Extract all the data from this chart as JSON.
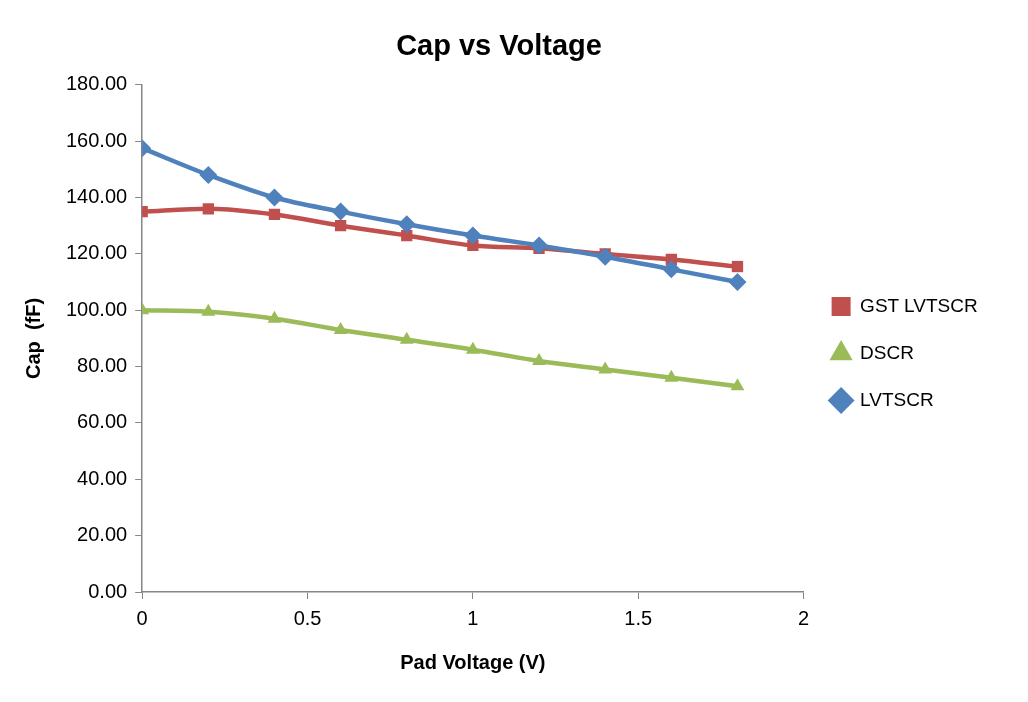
{
  "chart_data": {
    "type": "line",
    "title": "Cap vs Voltage",
    "xlabel": "Pad Voltage (V)",
    "ylabel": "Cap  (fF)",
    "x": [
      0,
      0.2,
      0.4,
      0.6,
      0.8,
      1.0,
      1.2,
      1.4,
      1.6,
      1.8
    ],
    "series": [
      {
        "name": "GST LVTSCR",
        "color": "#c0504d",
        "marker": "square",
        "values": [
          135,
          136,
          134,
          130,
          126.5,
          123,
          122,
          120,
          118,
          115.5
        ]
      },
      {
        "name": "DSCR",
        "color": "#9bbb59",
        "marker": "triangle",
        "values": [
          100,
          99.5,
          97,
          93,
          89.5,
          86,
          82,
          79,
          76,
          73
        ]
      },
      {
        "name": "LVTSCR",
        "color": "#4f81bd",
        "marker": "diamond",
        "values": [
          157.5,
          148,
          140,
          135,
          130.5,
          126.5,
          123,
          119,
          114.5,
          110
        ]
      }
    ],
    "xlim": [
      0,
      2
    ],
    "xticks": [
      0,
      0.5,
      1,
      1.5,
      2
    ],
    "ylim": [
      0,
      180
    ],
    "yticks": [
      {
        "value": 0,
        "label": "0.00"
      },
      {
        "value": 20,
        "label": "20.00"
      },
      {
        "value": 40,
        "label": "40.00"
      },
      {
        "value": 60,
        "label": "60.00"
      },
      {
        "value": 80,
        "label": "80.00"
      },
      {
        "value": 100,
        "label": "100.00"
      },
      {
        "value": 120,
        "label": "120.00"
      },
      {
        "value": 140,
        "label": "140.00"
      },
      {
        "value": 160,
        "label": "160.00"
      },
      {
        "value": 180,
        "label": "180.00"
      }
    ],
    "grid": false,
    "legend": "right"
  }
}
